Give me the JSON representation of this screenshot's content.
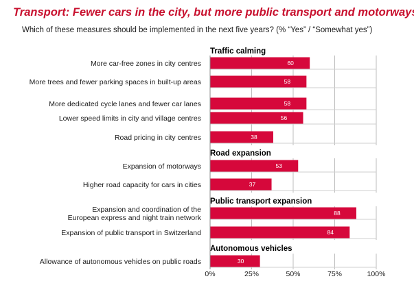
{
  "chart_data": {
    "type": "bar",
    "orientation": "horizontal",
    "title": "Transport: Fewer cars in the city, but more public transport and motorways",
    "subtitle": "Which of these measures should be implemented in the next five years? (% “Yes” / “Somewhat yes”)",
    "xlim": [
      0,
      100
    ],
    "x_ticks": [
      "0%",
      "25%",
      "50%",
      "75%",
      "100%"
    ],
    "grid": true,
    "bar_color": "#d6083b",
    "groups": [
      {
        "name": "Traffic calming",
        "items": [
          {
            "label": "More car-free zones in city centres",
            "value": 60
          },
          {
            "label": "More trees and fewer parking spaces in built-up areas",
            "value": 58
          },
          {
            "label": "More dedicated cycle lanes and fewer car lanes",
            "value": 58
          },
          {
            "label": "Lower speed limits in city and village centres",
            "value": 56
          },
          {
            "label": "Road pricing in city centres",
            "value": 38
          }
        ]
      },
      {
        "name": "Road expansion",
        "items": [
          {
            "label": "Expansion of motorways",
            "value": 53
          },
          {
            "label": "Higher road capacity for cars in cities",
            "value": 37
          }
        ]
      },
      {
        "name": "Public transport expansion",
        "items": [
          {
            "label": [
              "Expansion and coordination of the",
              "European express and night train network"
            ],
            "value": 88
          },
          {
            "label": "Expansion of public transport in Switzerland",
            "value": 84
          }
        ]
      },
      {
        "name": "Autonomous vehicles",
        "items": [
          {
            "label": "Allowance of autonomous vehicles on public roads",
            "value": 30
          }
        ]
      }
    ]
  }
}
